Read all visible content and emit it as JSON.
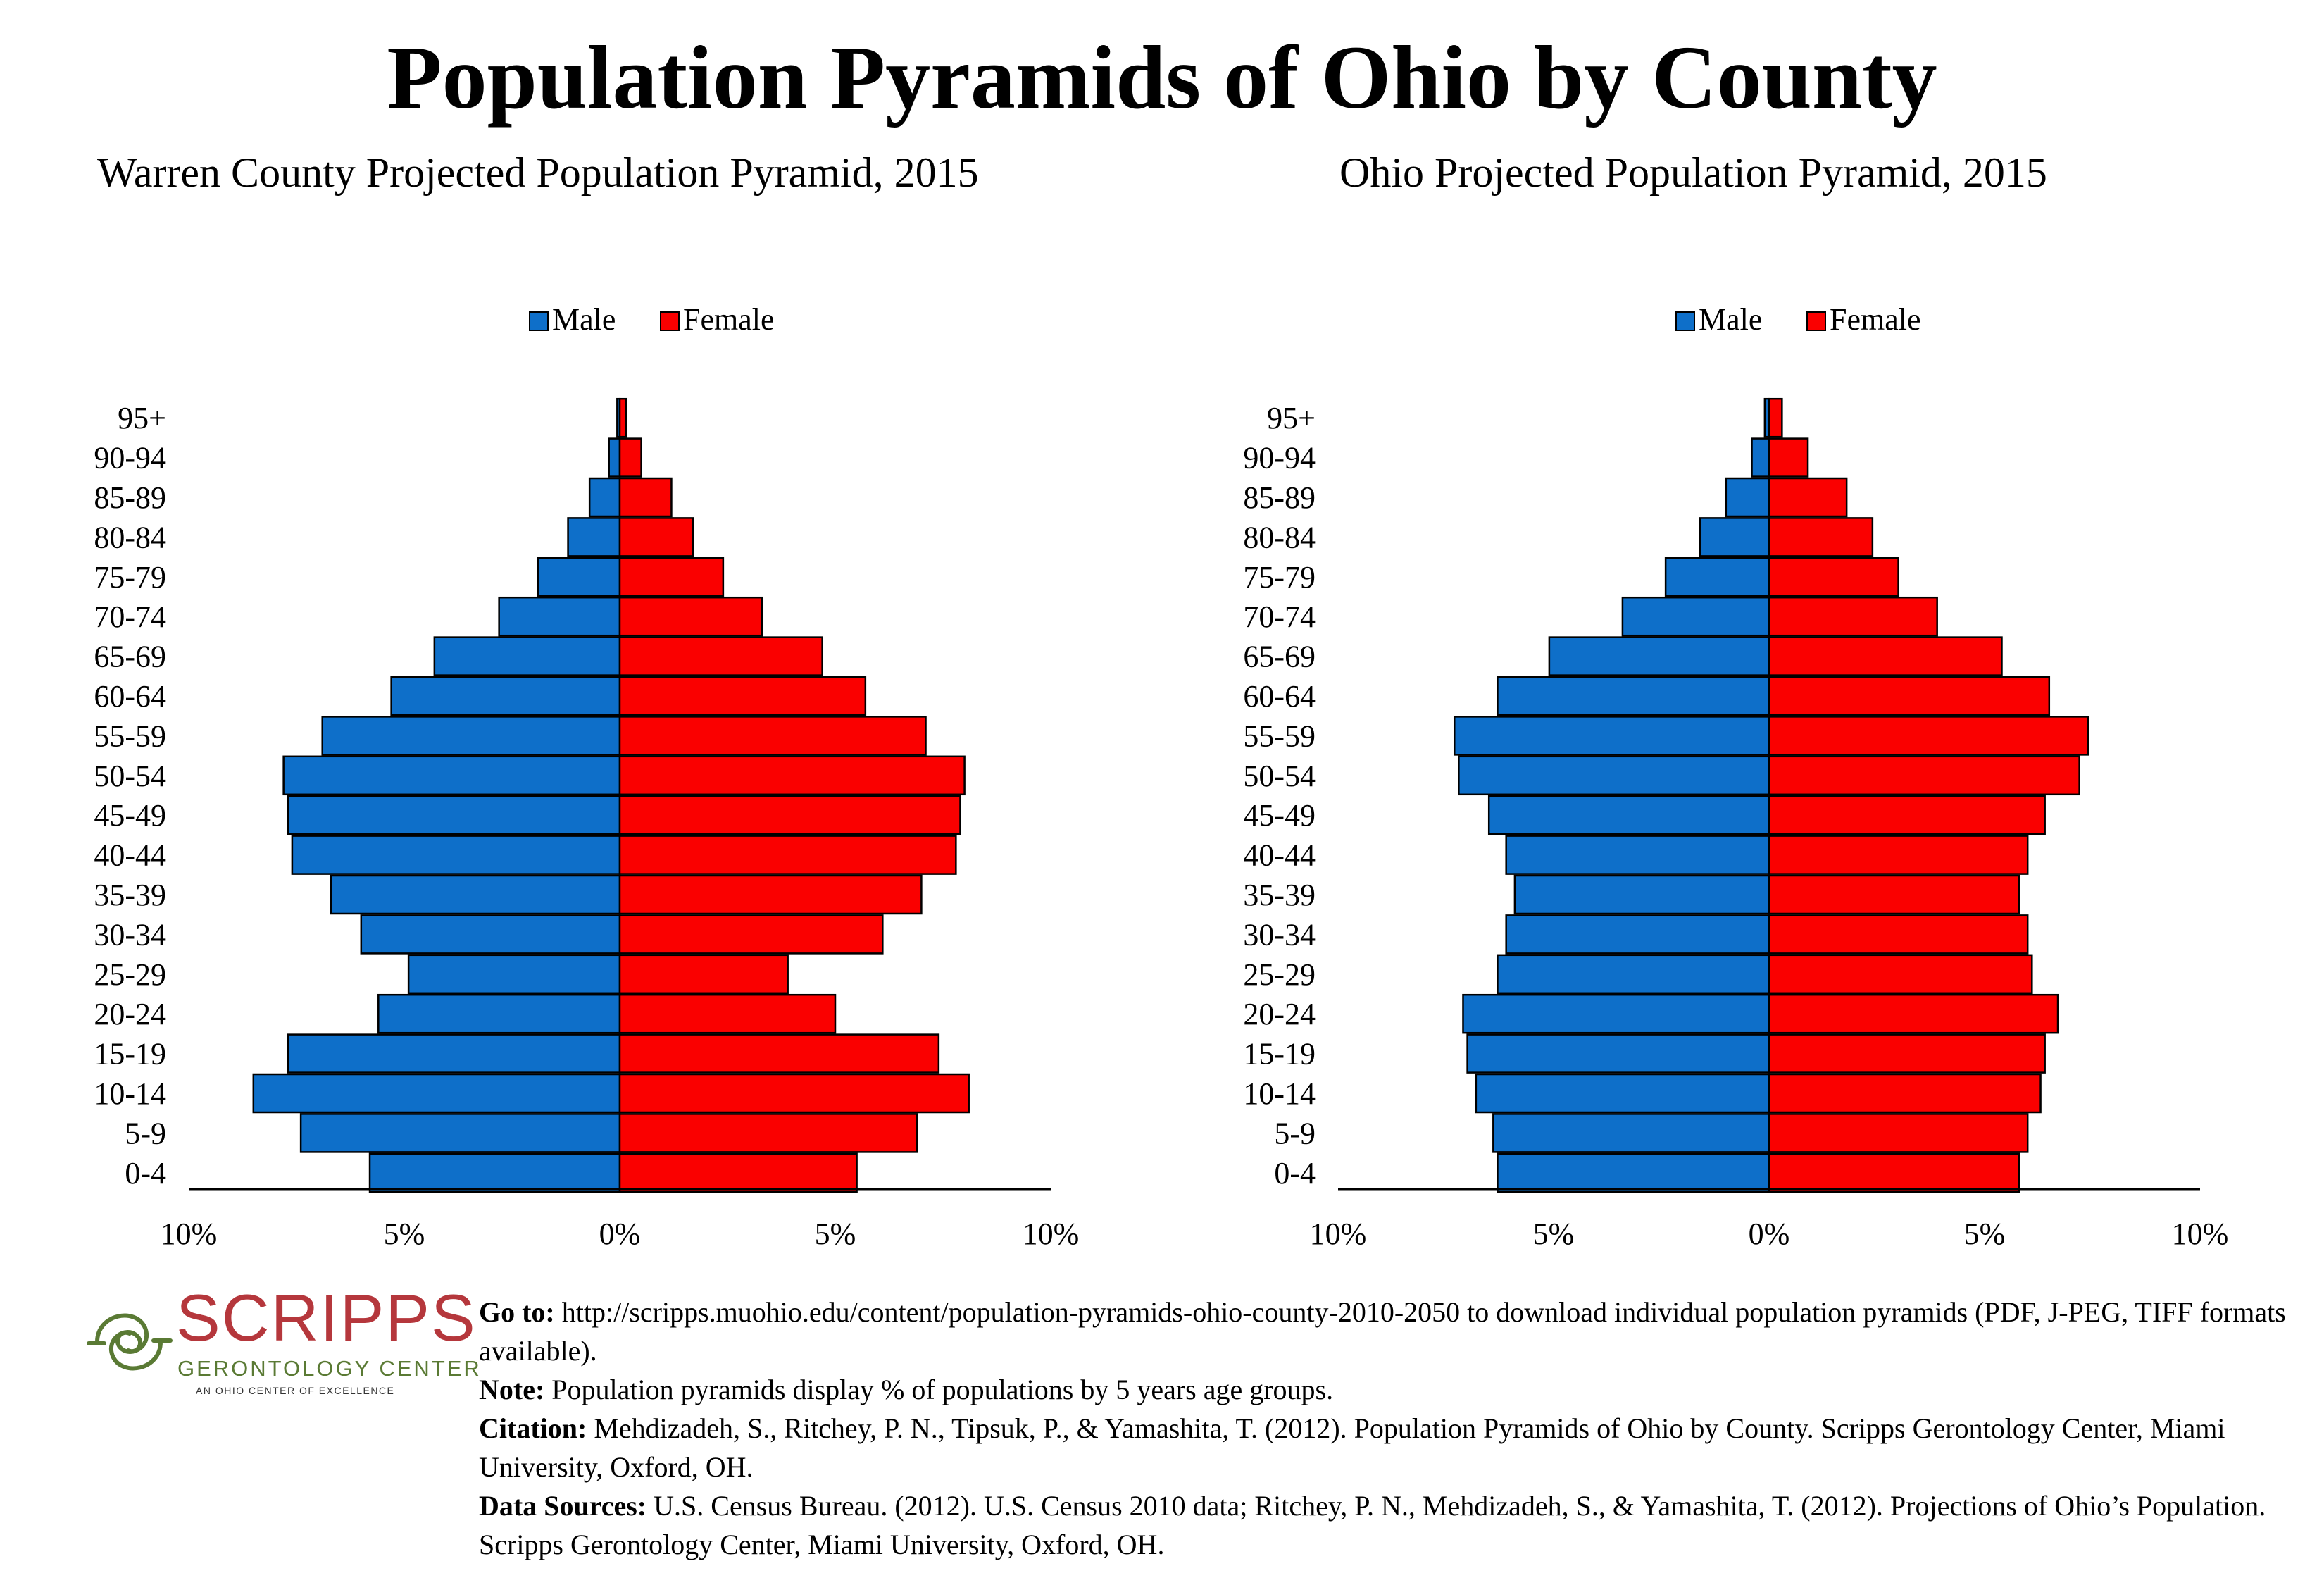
{
  "main_title": "Population Pyramids of Ohio by County",
  "legend": {
    "male": "Male",
    "female": "Female"
  },
  "colors": {
    "male": "#0e6fc9",
    "female": "#fa0000",
    "stroke": "#000000"
  },
  "chart_data": [
    {
      "type": "bar",
      "orientation": "horizontal-pyramid",
      "title": "Warren County Projected Population Pyramid, 2015",
      "categories": [
        "95+",
        "90-94",
        "85-89",
        "80-84",
        "75-79",
        "70-74",
        "65-69",
        "60-64",
        "55-59",
        "50-54",
        "45-49",
        "40-44",
        "35-39",
        "30-34",
        "25-29",
        "20-24",
        "15-19",
        "10-14",
        "5-9",
        "0-4"
      ],
      "series": [
        {
          "name": "Male",
          "values": [
            0.06,
            0.25,
            0.7,
            1.2,
            1.9,
            2.8,
            4.3,
            5.3,
            6.9,
            7.8,
            7.7,
            7.6,
            6.7,
            6.0,
            4.9,
            5.6,
            7.7,
            8.5,
            7.4,
            5.8
          ]
        },
        {
          "name": "Female",
          "values": [
            0.15,
            0.5,
            1.2,
            1.7,
            2.4,
            3.3,
            4.7,
            5.7,
            7.1,
            8.0,
            7.9,
            7.8,
            7.0,
            6.1,
            3.9,
            5.0,
            7.4,
            8.1,
            6.9,
            5.5
          ]
        }
      ],
      "xlim": [
        -10,
        10
      ],
      "xticks": [
        {
          "v": -10,
          "label": "10%"
        },
        {
          "v": -5,
          "label": "5%"
        },
        {
          "v": 0,
          "label": "0%"
        },
        {
          "v": 5,
          "label": "5%"
        },
        {
          "v": 10,
          "label": "10%"
        }
      ],
      "legend_position": "top-center",
      "grid": false
    },
    {
      "type": "bar",
      "orientation": "horizontal-pyramid",
      "title": "Ohio Projected Population Pyramid, 2015",
      "categories": [
        "95+",
        "90-94",
        "85-89",
        "80-84",
        "75-79",
        "70-74",
        "65-69",
        "60-64",
        "55-59",
        "50-54",
        "45-49",
        "40-44",
        "35-39",
        "30-34",
        "25-29",
        "20-24",
        "15-19",
        "10-14",
        "5-9",
        "0-4"
      ],
      "series": [
        {
          "name": "Male",
          "values": [
            0.1,
            0.4,
            1.0,
            1.6,
            2.4,
            3.4,
            5.1,
            6.3,
            7.3,
            7.2,
            6.5,
            6.1,
            5.9,
            6.1,
            6.3,
            7.1,
            7.0,
            6.8,
            6.4,
            6.3
          ]
        },
        {
          "name": "Female",
          "values": [
            0.3,
            0.9,
            1.8,
            2.4,
            3.0,
            3.9,
            5.4,
            6.5,
            7.4,
            7.2,
            6.4,
            6.0,
            5.8,
            6.0,
            6.1,
            6.7,
            6.4,
            6.3,
            6.0,
            5.8
          ]
        }
      ],
      "xlim": [
        -10,
        10
      ],
      "xticks": [
        {
          "v": -10,
          "label": "10%"
        },
        {
          "v": -5,
          "label": "5%"
        },
        {
          "v": 0,
          "label": "0%"
        },
        {
          "v": 5,
          "label": "5%"
        },
        {
          "v": 10,
          "label": "10%"
        }
      ],
      "legend_position": "top-center",
      "grid": false
    }
  ],
  "logo": {
    "name": "SCRIPPS",
    "subtitle": "GERONTOLOGY CENTER",
    "tagline": "AN OHIO CENTER OF EXCELLENCE"
  },
  "notes": {
    "goto_label": "Go to:",
    "goto_text": " http://scripps.muohio.edu/content/population-pyramids-ohio-county-2010-2050 to download individual population pyramids (PDF, J-PEG, TIFF formats available).",
    "note_label": "Note:",
    "note_text": " Population pyramids display % of populations by 5 years age groups.",
    "citation_label": "Citation:",
    "citation_text": " Mehdizadeh, S., Ritchey, P. N., Tipsuk, P., & Yamashita, T. (2012). Population Pyramids of Ohio by County. Scripps Gerontology Center, Miami University, Oxford, OH.",
    "sources_label": "Data Sources:",
    "sources_text": " U.S. Census Bureau. (2012). U.S. Census 2010 data; Ritchey, P. N., Mehdizadeh, S., & Yamashita, T. (2012). Projections of Ohio’s Population. Scripps Gerontology Center, Miami University, Oxford, OH."
  }
}
